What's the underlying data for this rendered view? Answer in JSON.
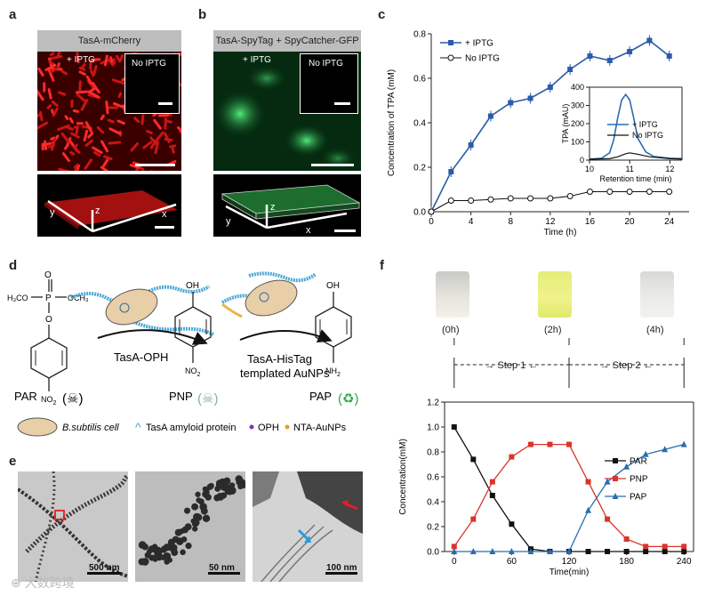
{
  "panels": {
    "a": {
      "label": "a",
      "header": "TasA-mCherry",
      "iptg_text": "+ IPTG",
      "inset_text": "No IPTG",
      "axes": {
        "x": "x",
        "y": "y",
        "z": "z"
      }
    },
    "b": {
      "label": "b",
      "header": "TasA-SpyTag + SpyCatcher-GFP",
      "iptg_text": "+ IPTG",
      "inset_text": "No IPTG",
      "axes": {
        "x": "x",
        "y": "y",
        "z": "z"
      }
    },
    "c": {
      "label": "c"
    },
    "d": {
      "label": "d",
      "par": "PAR",
      "pnp": "PNP",
      "pap": "PAP",
      "step1_label": "TasA-OPH",
      "step2_label_line1": "TasA-HisTag",
      "step2_label_line2": "templated AuNPs",
      "legend_cell": "B.subtilis cell",
      "legend_amyloid": "TasA amyloid protein",
      "legend_oph": "OPH",
      "legend_au": "NTA-AuNPs",
      "chem": {
        "oh": "OH",
        "no2": "NO",
        "no2_sub": "2",
        "nh2": "NH",
        "nh2_sub": "2",
        "p": "P",
        "o": "O",
        "methoxy_left": "H₃CO",
        "methoxy_right": "OCH₃"
      }
    },
    "e": {
      "label": "e",
      "scale1": "500 nm",
      "scale2": "50 nm",
      "scale3": "100 nm"
    },
    "f": {
      "label": "f",
      "tubes": [
        "(0h)",
        "(2h)",
        "(4h)"
      ],
      "step1": "Step 1",
      "step2": "Step 2"
    }
  },
  "colors": {
    "iptg_blue": "#2a5ca8",
    "red_series": "#d9352a",
    "black_series": "#111111",
    "blue_series": "#2a6cb0",
    "gfp_green": "#33d46a",
    "mcherry_red": "#e02020"
  },
  "chart_data": [
    {
      "type": "line",
      "id": "c-main",
      "title": "",
      "xlabel": "Time (h)",
      "ylabel": "Concentration of TPA (mM)",
      "xlim": [
        0,
        26
      ],
      "ylim": [
        0,
        0.8
      ],
      "xticks": [
        "0",
        "4",
        "8",
        "12",
        "16",
        "20",
        "24"
      ],
      "yticks": [
        "0.0",
        "0.2",
        "0.4",
        "0.6",
        "0.8"
      ],
      "legend": [
        "+ IPTG",
        "No IPTG"
      ],
      "series": [
        {
          "name": "+ IPTG",
          "x": [
            0,
            2,
            4,
            6,
            8,
            10,
            12,
            14,
            16,
            18,
            20,
            22,
            24
          ],
          "values": [
            0.0,
            0.18,
            0.3,
            0.43,
            0.49,
            0.51,
            0.56,
            0.64,
            0.7,
            0.68,
            0.72,
            0.77,
            0.7
          ]
        },
        {
          "name": "No IPTG",
          "x": [
            0,
            2,
            4,
            6,
            8,
            10,
            12,
            14,
            16,
            18,
            20,
            22,
            24
          ],
          "values": [
            0.0,
            0.05,
            0.05,
            0.055,
            0.06,
            0.06,
            0.06,
            0.07,
            0.09,
            0.09,
            0.09,
            0.09,
            0.09
          ]
        }
      ]
    },
    {
      "type": "line",
      "id": "c-inset",
      "xlabel": "Retention time (min)",
      "ylabel": "TPA (mAU)",
      "xlim": [
        10,
        12.3
      ],
      "ylim": [
        0,
        400
      ],
      "xticks": [
        "10",
        "11",
        "12"
      ],
      "yticks": [
        "0",
        "100",
        "200",
        "300",
        "400"
      ],
      "legend": [
        "+ IPTG",
        "No IPTG"
      ],
      "series": [
        {
          "name": "+ IPTG",
          "x": [
            10.0,
            10.3,
            10.5,
            10.6,
            10.7,
            10.8,
            10.9,
            11.0,
            11.1,
            11.2,
            11.4,
            11.6,
            12.0,
            12.3
          ],
          "values": [
            5,
            10,
            40,
            110,
            230,
            330,
            360,
            330,
            230,
            120,
            45,
            20,
            10,
            8
          ]
        },
        {
          "name": "No IPTG",
          "x": [
            10.0,
            10.5,
            10.7,
            10.9,
            11.0,
            11.2,
            11.5,
            12.0,
            12.3
          ],
          "values": [
            5,
            8,
            18,
            35,
            40,
            32,
            18,
            8,
            6
          ]
        }
      ]
    },
    {
      "type": "line",
      "id": "f-main",
      "xlabel": "Time(min)",
      "ylabel": "Concentration(mM)",
      "xlim": [
        -10,
        250
      ],
      "ylim": [
        0,
        1.2
      ],
      "xticks": [
        "0",
        "60",
        "120",
        "180",
        "240"
      ],
      "yticks": [
        "0.0",
        "0.2",
        "0.4",
        "0.6",
        "0.8",
        "1.0",
        "1.2"
      ],
      "legend": [
        "PAR",
        "PNP",
        "PAP"
      ],
      "series": [
        {
          "name": "PAR",
          "x": [
            0,
            20,
            40,
            60,
            80,
            100,
            120,
            140,
            160,
            180,
            200,
            220,
            240
          ],
          "values": [
            1.0,
            0.74,
            0.45,
            0.22,
            0.02,
            0.0,
            0.0,
            0.0,
            0.0,
            0.0,
            0.0,
            0.0,
            0.0
          ]
        },
        {
          "name": "PNP",
          "x": [
            0,
            20,
            40,
            60,
            80,
            100,
            120,
            140,
            160,
            180,
            200,
            220,
            240
          ],
          "values": [
            0.04,
            0.26,
            0.56,
            0.76,
            0.86,
            0.86,
            0.86,
            0.56,
            0.26,
            0.1,
            0.04,
            0.04,
            0.04
          ]
        },
        {
          "name": "PAP",
          "x": [
            0,
            20,
            40,
            60,
            80,
            100,
            120,
            140,
            160,
            180,
            200,
            220,
            240
          ],
          "values": [
            0.0,
            0.0,
            0.0,
            0.0,
            0.0,
            0.0,
            0.0,
            0.33,
            0.56,
            0.68,
            0.78,
            0.82,
            0.86
          ]
        }
      ]
    }
  ]
}
